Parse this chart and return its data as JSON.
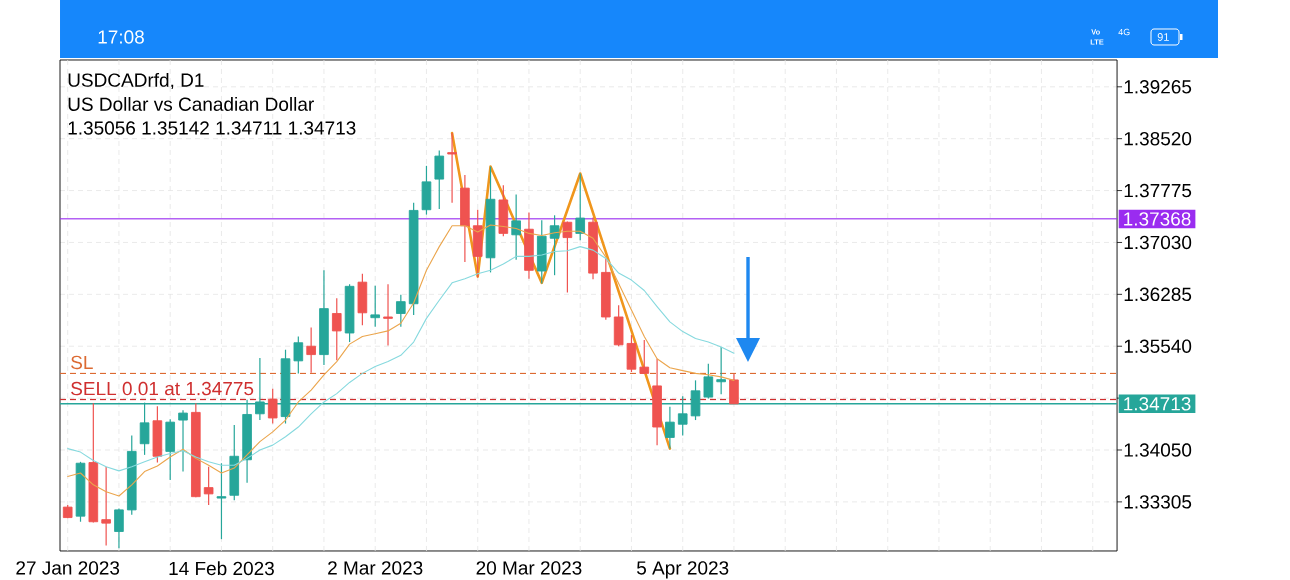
{
  "chart_data": {
    "type": "candlestick",
    "title": "USDCADrfd, D1",
    "subtitle": "US Dollar vs Canadian Dollar",
    "annotations": [
      "1.35056 1.35142 1.34711 1.34713",
      "17:08",
      "Vo",
      "LTE",
      "4G",
      "91"
    ],
    "categories": [
      "27 Jan 2023",
      null,
      null,
      null,
      null,
      null,
      null,
      null,
      null,
      null,
      null,
      null,
      "14 Feb 2023",
      null,
      null,
      null,
      null,
      null,
      null,
      null,
      null,
      null,
      null,
      null,
      "2 Mar 2023",
      null,
      null,
      null,
      null,
      null,
      null,
      null,
      null,
      null,
      null,
      null,
      "20 Mar 2023",
      null,
      null,
      null,
      null,
      null,
      null,
      null,
      null,
      null,
      null,
      null,
      "5 Apr 2023",
      null,
      null,
      null,
      null
    ],
    "ohlc": [
      [
        1.3323,
        1.3326,
        1.3307,
        1.3308
      ],
      [
        1.331,
        1.3388,
        1.3302,
        1.3386
      ],
      [
        1.3387,
        1.3472,
        1.3301,
        1.3302
      ],
      [
        1.3305,
        1.3381,
        1.3268,
        1.33
      ],
      [
        1.3288,
        1.3321,
        1.3264,
        1.3319
      ],
      [
        1.3319,
        1.3426,
        1.3312,
        1.3403
      ],
      [
        1.3414,
        1.3473,
        1.3398,
        1.3444
      ],
      [
        1.3447,
        1.3468,
        1.3387,
        1.3396
      ],
      [
        1.3403,
        1.3449,
        1.3362,
        1.3445
      ],
      [
        1.3448,
        1.3462,
        1.3374,
        1.3458
      ],
      [
        1.3459,
        1.3472,
        1.3337,
        1.3338
      ],
      [
        1.3351,
        1.3381,
        1.3326,
        1.3342
      ],
      [
        1.3336,
        1.3386,
        1.3277,
        1.3338
      ],
      [
        1.334,
        1.3441,
        1.3333,
        1.3396
      ],
      [
        1.3391,
        1.3477,
        1.3358,
        1.3456
      ],
      [
        1.3457,
        1.3537,
        1.3448,
        1.3474
      ],
      [
        1.3478,
        1.3493,
        1.3443,
        1.3451
      ],
      [
        1.3453,
        1.3549,
        1.3443,
        1.3536
      ],
      [
        1.3533,
        1.3568,
        1.3515,
        1.3559
      ],
      [
        1.3554,
        1.3581,
        1.3516,
        1.3542
      ],
      [
        1.3542,
        1.3663,
        1.3527,
        1.3608
      ],
      [
        1.3601,
        1.3623,
        1.3534,
        1.3576
      ],
      [
        1.3573,
        1.3643,
        1.356,
        1.364
      ],
      [
        1.3646,
        1.3658,
        1.3584,
        1.3602
      ],
      [
        1.3595,
        1.3641,
        1.3582,
        1.3599
      ],
      [
        1.3596,
        1.3643,
        1.3555,
        1.3594
      ],
      [
        1.3601,
        1.3628,
        1.3582,
        1.3618
      ],
      [
        1.3615,
        1.376,
        1.3599,
        1.3749
      ],
      [
        1.375,
        1.3813,
        1.3743,
        1.379
      ],
      [
        1.3794,
        1.3835,
        1.3751,
        1.3827
      ],
      [
        1.3832,
        1.386,
        1.376,
        1.383
      ],
      [
        1.3781,
        1.38,
        1.3675,
        1.3727
      ],
      [
        1.3727,
        1.375,
        1.3653,
        1.3683
      ],
      [
        1.3681,
        1.3812,
        1.366,
        1.3765
      ],
      [
        1.3764,
        1.3785,
        1.3712,
        1.3716
      ],
      [
        1.3714,
        1.3772,
        1.3678,
        1.3734
      ],
      [
        1.3722,
        1.3746,
        1.3651,
        1.3663
      ],
      [
        1.3662,
        1.3735,
        1.3644,
        1.3712
      ],
      [
        1.3709,
        1.3742,
        1.3656,
        1.3727
      ],
      [
        1.3732,
        1.3733,
        1.3631,
        1.371
      ],
      [
        1.3716,
        1.3802,
        1.3706,
        1.3738
      ],
      [
        1.3732,
        1.3739,
        1.365,
        1.3659
      ],
      [
        1.366,
        1.368,
        1.3592,
        1.3596
      ],
      [
        1.3596,
        1.3613,
        1.3554,
        1.3556
      ],
      [
        1.3558,
        1.357,
        1.3517,
        1.3521
      ],
      [
        1.3524,
        1.3563,
        1.3514,
        1.3515
      ],
      [
        1.3497,
        1.3536,
        1.3412,
        1.3438
      ],
      [
        1.3423,
        1.3467,
        1.3407,
        1.3445
      ],
      [
        1.3442,
        1.3482,
        1.3426,
        1.3457
      ],
      [
        1.3454,
        1.3505,
        1.3448,
        1.349
      ],
      [
        1.3481,
        1.3529,
        1.3479,
        1.351
      ],
      [
        1.3503,
        1.3553,
        1.3485,
        1.3506
      ],
      [
        1.35056,
        1.35142,
        1.34711,
        1.34713
      ]
    ],
    "colors": [
      "#ef5350",
      "#26a69a",
      "#ef5350",
      "#ef5350",
      "#26a69a",
      "#26a69a",
      "#26a69a",
      "#ef5350",
      "#26a69a",
      "#26a69a",
      "#ef5350",
      "#ef5350",
      "#26a69a",
      "#26a69a",
      "#26a69a",
      "#26a69a",
      "#ef5350",
      "#26a69a",
      "#26a69a",
      "#ef5350",
      "#26a69a",
      "#ef5350",
      "#26a69a",
      "#ef5350",
      "#26a69a",
      "#ef5350",
      "#26a69a",
      "#26a69a",
      "#26a69a",
      "#26a69a",
      "#ef5350",
      "#ef5350",
      "#ef5350",
      "#26a69a",
      "#ef5350",
      "#26a69a",
      "#ef5350",
      "#26a69a",
      "#26a69a",
      "#ef5350",
      "#26a69a",
      "#ef5350",
      "#ef5350",
      "#ef5350",
      "#ef5350",
      "#ef5350",
      "#ef5350",
      "#26a69a",
      "#26a69a",
      "#26a69a",
      "#26a69a",
      "#26a69a",
      "#ef5350"
    ],
    "series": [
      {
        "type": "line",
        "color": "#eba54c",
        "values": [
          1.3367,
          1.3372,
          1.3355,
          1.3345,
          1.3339,
          1.3355,
          1.3374,
          1.3382,
          1.3395,
          1.3406,
          1.3393,
          1.3383,
          1.3372,
          1.3379,
          1.3398,
          1.3417,
          1.3431,
          1.3448,
          1.3474,
          1.3491,
          1.3513,
          1.3532,
          1.3557,
          1.3568,
          1.3572,
          1.3576,
          1.3587,
          1.3616,
          1.3663,
          1.3697,
          1.3727,
          1.3727,
          1.3718,
          1.3728,
          1.3726,
          1.3723,
          1.3716,
          1.3713,
          1.3717,
          1.3719,
          1.3719,
          1.3709,
          1.3682,
          1.3644,
          1.3606,
          1.3568,
          1.3536,
          1.3523,
          1.3519,
          1.3515,
          1.3513,
          1.351,
          1.3505
        ]
      },
      {
        "type": "line",
        "color": "#86d9de",
        "values": [
          1.3407,
          1.3402,
          1.339,
          1.3381,
          1.3375,
          1.3381,
          1.3388,
          1.3395,
          1.34,
          1.3404,
          1.3395,
          1.3388,
          1.3383,
          1.3383,
          1.3393,
          1.3405,
          1.3412,
          1.3424,
          1.3438,
          1.3457,
          1.3474,
          1.3486,
          1.3502,
          1.3515,
          1.3525,
          1.3532,
          1.3541,
          1.356,
          1.3594,
          1.362,
          1.3645,
          1.3651,
          1.3658,
          1.3663,
          1.3672,
          1.3683,
          1.3683,
          1.3685,
          1.369,
          1.3691,
          1.3697,
          1.3692,
          1.368,
          1.3659,
          1.3649,
          1.3634,
          1.3611,
          1.3589,
          1.3575,
          1.3565,
          1.356,
          1.3553,
          1.3544
        ]
      },
      {
        "type": "line",
        "color": "#f0961c",
        "values": [
          null,
          null,
          null,
          null,
          null,
          null,
          null,
          null,
          null,
          null,
          null,
          null,
          null,
          null,
          null,
          null,
          null,
          null,
          null,
          null,
          null,
          null,
          null,
          null,
          null,
          null,
          null,
          null,
          null,
          null,
          1.386,
          null,
          1.3654,
          1.3812,
          null,
          null,
          null,
          1.3645,
          null,
          null,
          1.3802,
          null,
          null,
          null,
          null,
          null,
          null,
          1.3407,
          null,
          null,
          null,
          null,
          null
        ]
      }
    ],
    "ylim": [
      1.326,
      1.3965
    ],
    "yticks": [
      1.39265,
      {
        "value": 1.3852,
        "label": "1.38520"
      },
      1.37775,
      {
        "value": 1.3703,
        "label": "1.37030"
      },
      1.36285,
      {
        "value": 1.3554,
        "label": "1.35540"
      },
      {
        "value": 1.34795,
        "label": null
      },
      {
        "value": 1.3405,
        "label": "1.34050"
      },
      1.33305
    ],
    "grid": true,
    "ref_lines": [
      {
        "axis": "y",
        "value": 1.37368,
        "label": "1.37368",
        "color": "#9a2cf0",
        "line_style": "solid"
      },
      {
        "axis": "y",
        "value": 1.3515,
        "label": "SL",
        "color": "#dc6a32",
        "line_style": "dashed"
      },
      {
        "axis": "y",
        "value": 1.34775,
        "label": "SELL 0.01 at 1.34775",
        "color": "#cf2f2f",
        "line_style": "dashed"
      },
      {
        "axis": "y",
        "value": 1.34713,
        "label": "1.34713",
        "color": "#26a69a",
        "line_style": "solid"
      }
    ]
  }
}
